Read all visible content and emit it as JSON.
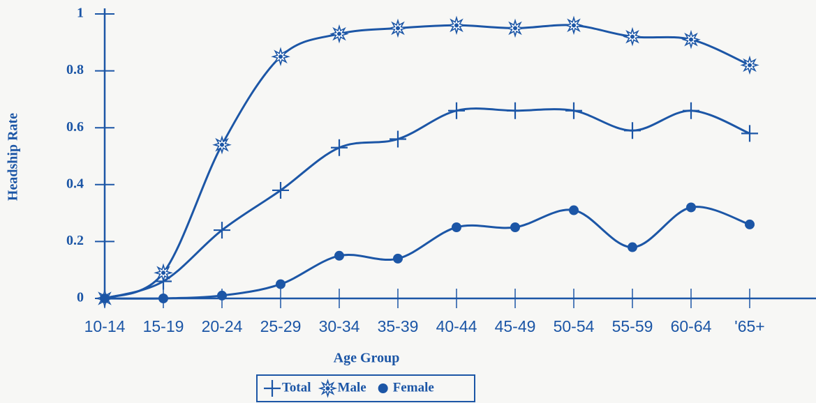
{
  "chart_data": {
    "type": "line",
    "x_label": "Age Group",
    "y_label": "Headship Rate",
    "categories": [
      "10-14",
      "15-19",
      "20-24",
      "25-29",
      "30-34",
      "35-39",
      "40-44",
      "45-49",
      "50-54",
      "55-59",
      "60-64",
      "'65+"
    ],
    "series": [
      {
        "name": "Total",
        "color": "#1c56a6",
        "marker": "plus",
        "values": [
          0,
          0.06,
          0.24,
          0.38,
          0.53,
          0.56,
          0.66,
          0.66,
          0.66,
          0.59,
          0.66,
          0.58
        ]
      },
      {
        "name": "Male",
        "color": "#1c56a6",
        "marker": "star",
        "values": [
          0,
          0.09,
          0.54,
          0.85,
          0.93,
          0.95,
          0.96,
          0.95,
          0.96,
          0.92,
          0.91,
          0.82
        ]
      },
      {
        "name": "Female",
        "color": "#1c56a6",
        "marker": "circle",
        "values": [
          0,
          0,
          0.01,
          0.05,
          0.15,
          0.14,
          0.25,
          0.25,
          0.31,
          0.18,
          0.32,
          0.26
        ]
      }
    ],
    "ylim": [
      0,
      1
    ],
    "yticks": [
      0,
      0.2,
      0.4,
      0.6,
      0.8,
      1
    ],
    "legend": "bottom"
  }
}
